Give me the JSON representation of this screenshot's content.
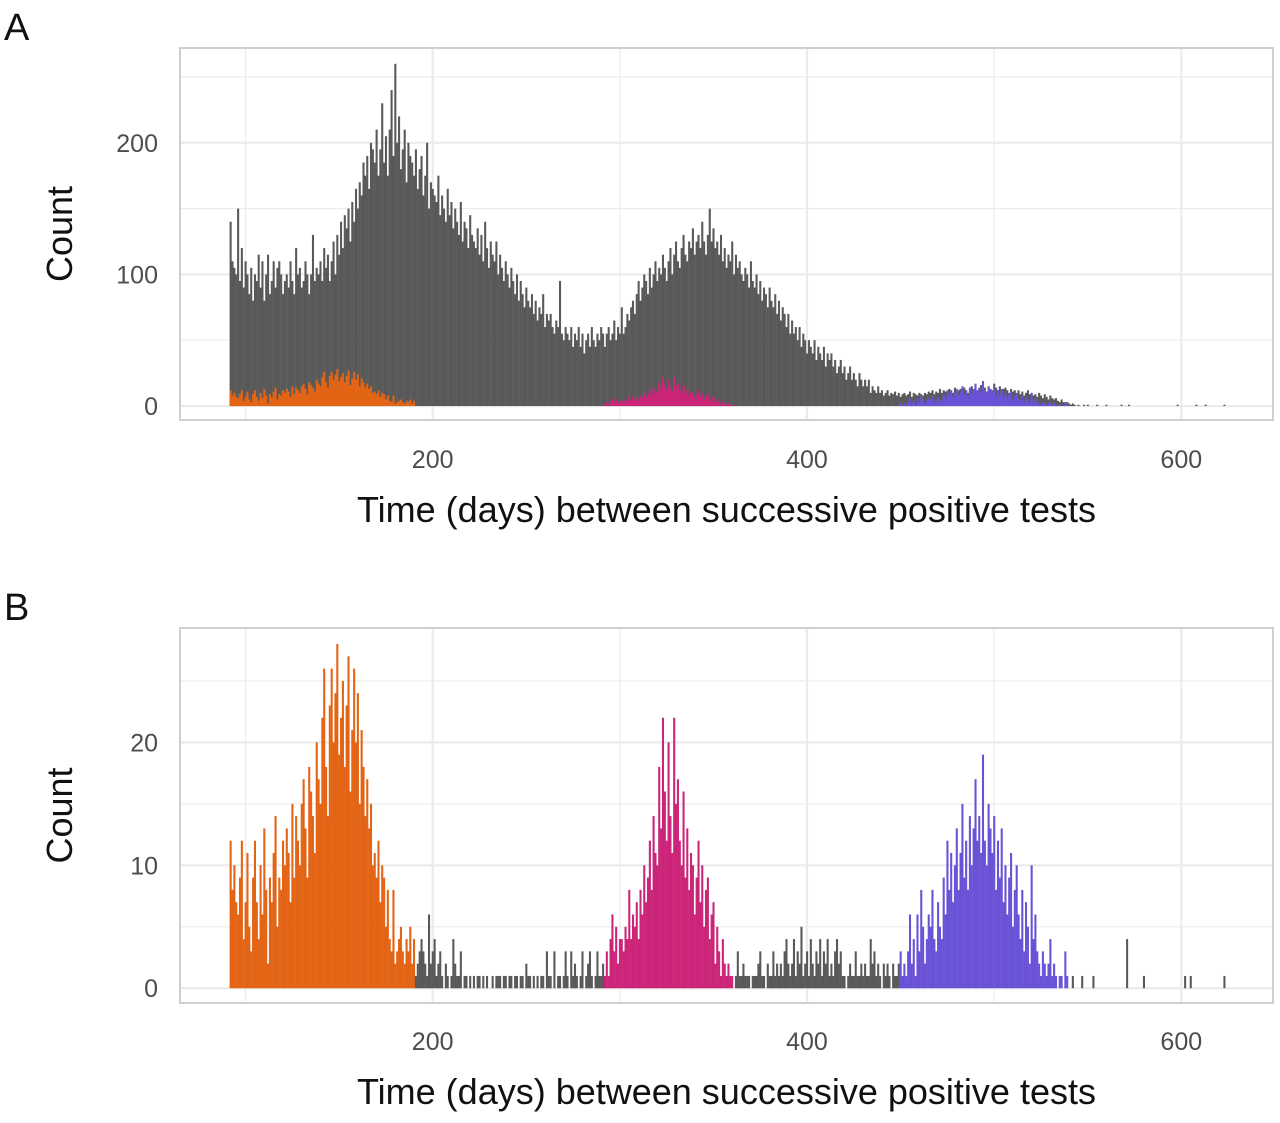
{
  "colors": {
    "gray": "#595959",
    "orange": "#E36414",
    "magenta": "#CB2478",
    "purple": "#6A52D6"
  },
  "chart_data": [
    {
      "panel": "A",
      "type": "bar",
      "xlabel": "Time (days) between successive positive tests",
      "ylabel": "Count",
      "x_start": 92,
      "bin_width": 1,
      "xlim": [
        65,
        649
      ],
      "ylim": [
        -10.6,
        272
      ],
      "x_ticks": [
        "200",
        "400",
        "600"
      ],
      "x_tick_values": [
        200,
        400,
        600
      ],
      "y_ticks": [
        "0",
        "100",
        "200"
      ],
      "y_tick_values": [
        0,
        100,
        200
      ],
      "grid": true,
      "overlay": "panel B coloured groups drawn over the total",
      "values": [
        140,
        110,
        105,
        100,
        150,
        95,
        120,
        90,
        110,
        100,
        85,
        105,
        80,
        100,
        95,
        115,
        90,
        110,
        80,
        100,
        115,
        85,
        95,
        110,
        90,
        105,
        110,
        100,
        85,
        95,
        100,
        90,
        110,
        95,
        85,
        120,
        100,
        105,
        90,
        95,
        110,
        100,
        85,
        100,
        130,
        95,
        105,
        100,
        110,
        95,
        120,
        105,
        115,
        95,
        110,
        125,
        100,
        130,
        115,
        140,
        120,
        145,
        135,
        150,
        125,
        155,
        140,
        165,
        150,
        170,
        160,
        185,
        175,
        190,
        165,
        200,
        195,
        185,
        210,
        175,
        195,
        230,
        185,
        205,
        175,
        210,
        240,
        190,
        260,
        200,
        220,
        180,
        195,
        210,
        170,
        200,
        190,
        185,
        175,
        195,
        165,
        180,
        190,
        160,
        175,
        200,
        150,
        170,
        165,
        160,
        155,
        175,
        145,
        160,
        150,
        140,
        165,
        145,
        155,
        135,
        150,
        140,
        130,
        155,
        125,
        140,
        135,
        120,
        145,
        130,
        125,
        120,
        135,
        115,
        130,
        110,
        140,
        120,
        105,
        125,
        115,
        110,
        125,
        100,
        115,
        105,
        95,
        110,
        100,
        90,
        105,
        95,
        85,
        100,
        80,
        95,
        85,
        75,
        90,
        80,
        75,
        85,
        70,
        80,
        65,
        75,
        70,
        85,
        60,
        70,
        65,
        70,
        60,
        55,
        65,
        60,
        95,
        55,
        50,
        60,
        55,
        50,
        60,
        45,
        55,
        50,
        60,
        45,
        55,
        40,
        50,
        55,
        45,
        60,
        50,
        45,
        55,
        50,
        60,
        55,
        45,
        55,
        60,
        50,
        55,
        65,
        50,
        60,
        55,
        75,
        55,
        60,
        70,
        65,
        75,
        80,
        70,
        85,
        95,
        80,
        90,
        100,
        95,
        85,
        105,
        90,
        100,
        110,
        95,
        105,
        100,
        115,
        105,
        95,
        110,
        120,
        100,
        115,
        125,
        110,
        105,
        120,
        130,
        115,
        110,
        125,
        120,
        135,
        115,
        125,
        130,
        120,
        140,
        125,
        115,
        130,
        150,
        125,
        135,
        120,
        125,
        115,
        130,
        110,
        120,
        105,
        115,
        110,
        125,
        100,
        115,
        105,
        110,
        100,
        95,
        105,
        100,
        90,
        110,
        95,
        90,
        100,
        85,
        95,
        80,
        90,
        85,
        75,
        90,
        80,
        75,
        85,
        70,
        80,
        65,
        75,
        70,
        60,
        70,
        55,
        65,
        55,
        60,
        50,
        60,
        45,
        55,
        50,
        40,
        50,
        45,
        40,
        50,
        35,
        45,
        40,
        35,
        45,
        30,
        40,
        35,
        40,
        30,
        35,
        25,
        30,
        35,
        25,
        30,
        20,
        25,
        30,
        20,
        25,
        20,
        15,
        25,
        20,
        15,
        20,
        15,
        20,
        10,
        15,
        12,
        10,
        15,
        10,
        12,
        8,
        10,
        12,
        8,
        10,
        9,
        11,
        8,
        10,
        7,
        9,
        10,
        8,
        9,
        11,
        7,
        10,
        9,
        8,
        10,
        9,
        8,
        10,
        9,
        11,
        10,
        12,
        9,
        11,
        10,
        13,
        10,
        12,
        11,
        9,
        13,
        12,
        10,
        14,
        11,
        12,
        13,
        11,
        14,
        12,
        10,
        13,
        15,
        12,
        14,
        11,
        13,
        16,
        12,
        14,
        11,
        15,
        13,
        12,
        17,
        14,
        12,
        15,
        11,
        13,
        14,
        12,
        10,
        13,
        11,
        12,
        10,
        12,
        9,
        11,
        8,
        10,
        12,
        9,
        10,
        8,
        9,
        7,
        10,
        8,
        6,
        9,
        7,
        5,
        8,
        6,
        5,
        6,
        4,
        3,
        5,
        3,
        2,
        3,
        2,
        1,
        2,
        1,
        0,
        1,
        0,
        0,
        1,
        0,
        1,
        0,
        0,
        0,
        0,
        1,
        0,
        0,
        0,
        0,
        1,
        0,
        0,
        0,
        0,
        0,
        0,
        0,
        1,
        0,
        0,
        0,
        1,
        0,
        0,
        0,
        0,
        0,
        0,
        0,
        0,
        0,
        0,
        0,
        0,
        0,
        0,
        0,
        0,
        0,
        0,
        0,
        0,
        0,
        0,
        0,
        0,
        0,
        1,
        0,
        0,
        0,
        0,
        0,
        0,
        0,
        0,
        0,
        1,
        0,
        0,
        0,
        0,
        1,
        0,
        0,
        0,
        0,
        0,
        0,
        0,
        0,
        0,
        1,
        0,
        0
      ]
    },
    {
      "panel": "B",
      "type": "bar",
      "xlabel": "Time (days) between successive positive tests",
      "ylabel": "Count",
      "x_start": 92,
      "bin_width": 1,
      "xlim": [
        65,
        649
      ],
      "ylim": [
        -1.2,
        29.3
      ],
      "x_ticks": [
        "200",
        "400",
        "600"
      ],
      "x_tick_values": [
        200,
        400,
        600
      ],
      "y_ticks": [
        "0",
        "10",
        "20"
      ],
      "y_tick_values": [
        0,
        10,
        20
      ],
      "grid": true,
      "color_groups": [
        {
          "color": "orange",
          "from": 92,
          "to": 190
        },
        {
          "color": "gray",
          "from": 191,
          "to": 291
        },
        {
          "color": "magenta",
          "from": 292,
          "to": 360
        },
        {
          "color": "gray",
          "from": 361,
          "to": 449
        },
        {
          "color": "purple",
          "from": 450,
          "to": 540
        },
        {
          "color": "gray",
          "from": 541,
          "to": 625
        }
      ],
      "values": [
        12,
        8,
        10,
        7,
        6,
        9,
        12,
        4,
        7,
        11,
        5,
        3,
        9,
        12,
        7,
        4,
        10,
        6,
        13,
        8,
        2,
        9,
        7,
        11,
        14,
        5,
        9,
        8,
        12,
        10,
        13,
        11,
        7,
        15,
        9,
        14,
        12,
        10,
        15,
        17,
        13,
        9,
        18,
        16,
        14,
        11,
        20,
        17,
        15,
        22,
        26,
        18,
        14,
        23,
        26,
        20,
        24,
        28,
        19,
        22,
        25,
        18,
        23,
        27,
        16,
        21,
        26,
        20,
        24,
        15,
        21,
        18,
        14,
        17,
        13,
        15,
        10,
        11,
        9,
        12,
        7,
        10,
        9,
        5,
        8,
        4,
        3,
        8,
        2,
        3,
        4,
        5,
        3,
        2,
        4,
        3,
        5,
        2,
        4,
        1,
        2,
        3,
        4,
        3,
        2,
        1,
        6,
        2,
        3,
        4,
        1,
        2,
        3,
        1,
        0,
        2,
        1,
        0,
        1,
        4,
        2,
        1,
        1,
        3,
        0,
        1,
        1,
        0,
        1,
        0,
        1,
        0,
        1,
        1,
        0,
        1,
        0,
        1,
        0,
        0,
        1,
        0,
        1,
        1,
        1,
        0,
        1,
        1,
        0,
        1,
        1,
        0,
        1,
        1,
        0,
        1,
        1,
        0,
        2,
        1,
        1,
        0,
        1,
        0,
        1,
        0,
        1,
        1,
        0,
        3,
        1,
        1,
        0,
        3,
        0,
        1,
        1,
        0,
        1,
        3,
        1,
        0,
        3,
        1,
        2,
        1,
        0,
        1,
        3,
        0,
        1,
        2,
        3,
        1,
        0,
        1,
        3,
        1,
        1,
        2,
        1,
        3,
        1,
        4,
        6,
        3,
        5,
        2,
        4,
        4,
        3,
        5,
        4,
        8,
        4,
        6,
        5,
        7,
        4,
        8,
        6,
        10,
        7,
        9,
        12,
        8,
        14,
        11,
        10,
        18,
        13,
        22,
        16,
        12,
        20,
        14,
        11,
        22,
        15,
        17,
        12,
        10,
        16,
        9,
        13,
        8,
        11,
        10,
        6,
        9,
        12,
        7,
        10,
        5,
        8,
        9,
        4,
        6,
        7,
        2,
        5,
        3,
        1,
        4,
        2,
        1,
        2,
        1,
        1,
        0,
        1,
        3,
        1,
        1,
        2,
        1,
        1,
        1,
        0,
        1,
        1,
        1,
        2,
        3,
        1,
        1,
        0,
        2,
        1,
        1,
        3,
        1,
        2,
        1,
        2,
        1,
        3,
        4,
        2,
        1,
        2,
        4,
        1,
        3,
        2,
        5,
        1,
        2,
        3,
        1,
        4,
        2,
        1,
        3,
        2,
        4,
        1,
        3,
        2,
        4,
        1,
        2,
        1,
        3,
        4,
        2,
        3,
        1,
        1,
        0,
        1,
        2,
        1,
        1,
        3,
        1,
        1,
        2,
        1,
        2,
        1,
        1,
        4,
        2,
        3,
        1,
        2,
        1,
        0,
        2,
        1,
        2,
        1,
        0,
        2,
        1,
        1,
        2,
        3,
        1,
        2,
        1,
        3,
        6,
        2,
        4,
        1,
        6,
        3,
        8,
        5,
        2,
        4,
        6,
        5,
        8,
        4,
        3,
        7,
        5,
        4,
        9,
        6,
        12,
        8,
        11,
        7,
        10,
        13,
        8,
        11,
        15,
        9,
        12,
        8,
        14,
        10,
        13,
        17,
        12,
        14,
        11,
        19,
        12,
        10,
        15,
        13,
        11,
        14,
        8,
        12,
        9,
        13,
        7,
        10,
        6,
        9,
        11,
        5,
        8,
        10,
        6,
        4,
        8,
        3,
        7,
        5,
        2,
        10,
        4,
        6,
        3,
        2,
        1,
        3,
        2,
        1,
        2,
        4,
        1,
        2,
        1,
        0,
        1,
        1,
        0,
        3,
        1,
        0,
        0,
        1,
        0,
        0,
        0,
        0,
        1,
        0,
        0,
        0,
        0,
        0,
        1,
        0,
        0,
        0,
        0,
        0,
        0,
        0,
        0,
        0,
        0,
        0,
        0,
        0,
        0,
        0,
        0,
        0,
        4,
        0,
        0,
        0,
        0,
        0,
        0,
        0,
        0,
        1,
        0,
        0,
        0,
        0,
        0,
        0,
        0,
        0,
        0,
        0,
        0,
        0,
        0,
        0,
        0,
        0,
        0,
        0,
        0,
        0,
        0,
        1,
        0,
        0,
        1,
        0,
        0,
        0,
        0,
        0,
        0,
        0,
        0,
        0,
        0,
        0,
        0,
        0,
        0,
        0,
        0,
        0,
        1,
        0,
        0
      ]
    }
  ]
}
